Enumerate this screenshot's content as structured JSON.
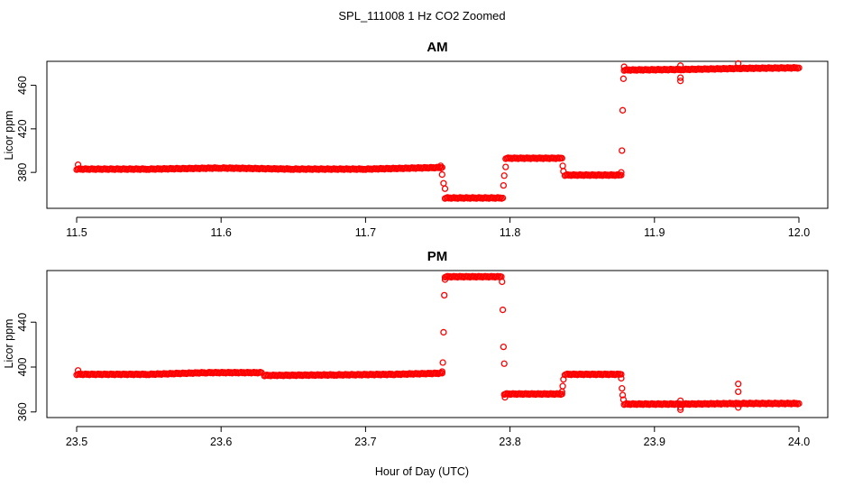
{
  "figure": {
    "suptitle": "SPL_111008  1 Hz CO2 Zoomed",
    "xlabel": "Hour of Day (UTC)",
    "point_color": "#ff0000",
    "marker": "open-circle"
  },
  "chart_data": [
    {
      "type": "scatter",
      "title": "AM",
      "xlabel": "",
      "ylabel": "Licor ppm",
      "xlim": [
        11.5,
        12.0
      ],
      "ylim": [
        347,
        482
      ],
      "x_ticks": [
        "11.5",
        "11.6",
        "11.7",
        "11.8",
        "11.9",
        "12.0"
      ],
      "y_ticks": [
        "380",
        "420",
        "460"
      ],
      "segments": [
        {
          "x": [
            11.5,
            11.55,
            11.6,
            11.65,
            11.7,
            11.753
          ],
          "y": [
            383.0,
            383.0,
            384.0,
            383.0,
            383.0,
            384.5
          ]
        },
        {
          "x": [
            11.755,
            11.795
          ],
          "y": [
            356.5,
            356.5
          ]
        },
        {
          "x": [
            11.797,
            11.836
          ],
          "y": [
            393.0,
            393.0
          ]
        },
        {
          "x": [
            11.838,
            11.877
          ],
          "y": [
            377.5,
            377.5
          ]
        },
        {
          "x": [
            11.879,
            11.92,
            11.96,
            12.0
          ],
          "y": [
            474.0,
            474.5,
            475.5,
            476.0
          ]
        }
      ],
      "transition_points": [
        {
          "x": 11.501,
          "y": 387
        },
        {
          "x": 11.752,
          "y": 386
        },
        {
          "x": 11.753,
          "y": 378
        },
        {
          "x": 11.754,
          "y": 370
        },
        {
          "x": 11.755,
          "y": 365
        },
        {
          "x": 11.7955,
          "y": 368
        },
        {
          "x": 11.796,
          "y": 377
        },
        {
          "x": 11.797,
          "y": 385
        },
        {
          "x": 11.8365,
          "y": 386
        },
        {
          "x": 11.837,
          "y": 381
        },
        {
          "x": 11.877,
          "y": 380
        },
        {
          "x": 11.8775,
          "y": 400
        },
        {
          "x": 11.878,
          "y": 437
        },
        {
          "x": 11.8785,
          "y": 466
        },
        {
          "x": 11.879,
          "y": 477
        },
        {
          "x": 11.918,
          "y": 464
        },
        {
          "x": 11.918,
          "y": 467
        },
        {
          "x": 11.918,
          "y": 478
        },
        {
          "x": 11.958,
          "y": 480
        }
      ]
    },
    {
      "type": "scatter",
      "title": "PM",
      "xlabel": "",
      "ylabel": "Licor ppm",
      "xlim": [
        23.5,
        24.0
      ],
      "ylim": [
        355,
        486
      ],
      "x_ticks": [
        "23.5",
        "23.6",
        "23.7",
        "23.8",
        "23.9",
        "24.0"
      ],
      "y_ticks": [
        "360",
        "400",
        "440"
      ],
      "segments": [
        {
          "x": [
            23.5,
            23.55,
            23.59,
            23.628
          ],
          "y": [
            393.5,
            393.5,
            395.0,
            395.0
          ]
        },
        {
          "x": [
            23.63,
            23.68,
            23.72,
            23.753
          ],
          "y": [
            392.5,
            393.0,
            393.5,
            394.5
          ]
        },
        {
          "x": [
            23.755,
            23.794
          ],
          "y": [
            480.5,
            480.5
          ]
        },
        {
          "x": [
            23.796,
            23.836
          ],
          "y": [
            376.0,
            376.0
          ]
        },
        {
          "x": [
            23.838,
            23.877
          ],
          "y": [
            393.5,
            393.5
          ]
        },
        {
          "x": [
            23.879,
            23.92,
            23.96,
            24.0
          ],
          "y": [
            367.0,
            367.0,
            367.5,
            367.5
          ]
        }
      ],
      "transition_points": [
        {
          "x": 23.501,
          "y": 397
        },
        {
          "x": 23.753,
          "y": 396
        },
        {
          "x": 23.7535,
          "y": 404
        },
        {
          "x": 23.754,
          "y": 431
        },
        {
          "x": 23.7545,
          "y": 464
        },
        {
          "x": 23.755,
          "y": 478
        },
        {
          "x": 23.7945,
          "y": 476
        },
        {
          "x": 23.795,
          "y": 451
        },
        {
          "x": 23.7955,
          "y": 418
        },
        {
          "x": 23.796,
          "y": 403
        },
        {
          "x": 23.7965,
          "y": 373
        },
        {
          "x": 23.836,
          "y": 378
        },
        {
          "x": 23.8365,
          "y": 383
        },
        {
          "x": 23.837,
          "y": 389
        },
        {
          "x": 23.877,
          "y": 390
        },
        {
          "x": 23.8775,
          "y": 381
        },
        {
          "x": 23.878,
          "y": 375
        },
        {
          "x": 23.8785,
          "y": 371
        },
        {
          "x": 23.918,
          "y": 362
        },
        {
          "x": 23.918,
          "y": 364
        },
        {
          "x": 23.918,
          "y": 370
        },
        {
          "x": 23.958,
          "y": 364
        },
        {
          "x": 23.958,
          "y": 378
        },
        {
          "x": 23.958,
          "y": 385
        }
      ]
    }
  ]
}
